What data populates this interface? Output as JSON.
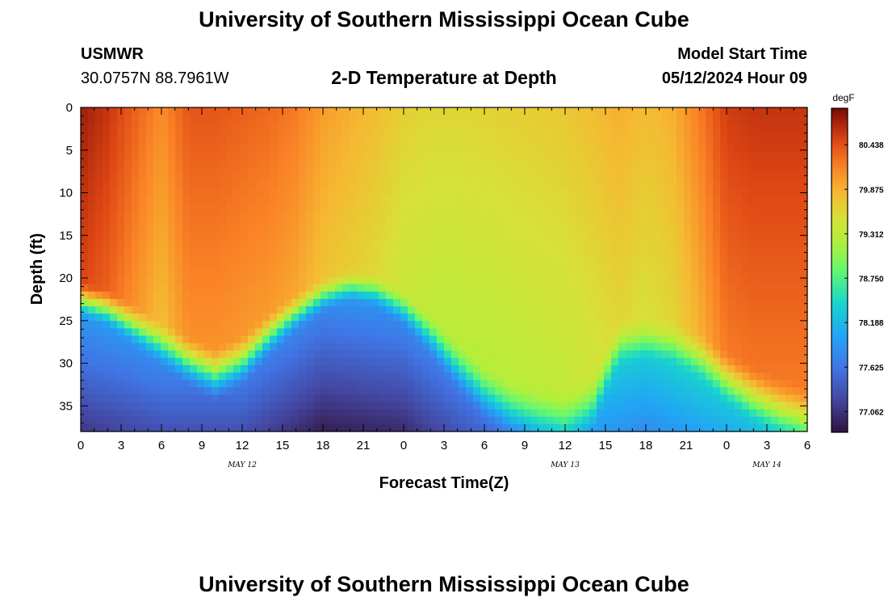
{
  "header": {
    "title": "University of Southern Mississippi Ocean Cube",
    "station": "USMWR",
    "coords": "30.0757N  88.7961W",
    "subtitle": "2-D Temperature at Depth",
    "model_label": "Model Start Time",
    "model_time": "05/12/2024 Hour 09"
  },
  "footer": {
    "title": "University of Southern Mississippi Ocean Cube"
  },
  "chart_data": {
    "type": "heatmap",
    "title": "2-D Temperature at Depth",
    "xlabel": "Forecast Time(Z)",
    "ylabel": "Depth (ft)",
    "x_unit": "hours from 05/12 00Z",
    "xlim": [
      0,
      54
    ],
    "ylim": [
      0,
      38
    ],
    "x_tick_values": [
      0,
      3,
      6,
      9,
      12,
      15,
      18,
      21,
      24,
      27,
      30,
      33,
      36,
      39,
      42,
      45,
      48,
      51,
      54
    ],
    "x_tick_labels": [
      "0",
      "3",
      "6",
      "9",
      "12",
      "15",
      "18",
      "21",
      "0",
      "3",
      "6",
      "9",
      "12",
      "15",
      "18",
      "21",
      "0",
      "3",
      "6"
    ],
    "y_ticks": [
      0,
      5,
      10,
      15,
      20,
      25,
      30,
      35
    ],
    "date_labels": [
      {
        "text": "MAY 12",
        "x": 12
      },
      {
        "text": "MAY 13",
        "x": 36
      },
      {
        "text": "MAY 14",
        "x": 51
      }
    ],
    "colorbar": {
      "units": "degF",
      "vmin": 76.8,
      "vmax": 80.9,
      "tick_values": [
        77.062,
        77.625,
        78.188,
        78.75,
        79.312,
        79.875,
        80.438
      ],
      "tick_labels": [
        "77.062",
        "77.625",
        "78.188",
        "78.750",
        "79.312",
        "79.875",
        "80.438"
      ]
    },
    "surface_temp_degF": {
      "time_h": [
        0,
        2,
        4,
        6,
        8,
        10,
        12,
        14,
        16,
        18,
        20,
        22,
        24,
        26,
        28,
        30,
        32,
        34,
        36,
        38,
        40,
        42,
        44,
        46,
        48,
        50,
        52,
        54
      ],
      "values": [
        80.75,
        80.6,
        80.35,
        80.1,
        80.4,
        80.4,
        80.35,
        80.3,
        80.2,
        80.0,
        79.9,
        79.8,
        79.65,
        79.6,
        79.6,
        79.62,
        79.65,
        79.68,
        79.72,
        79.8,
        79.9,
        79.8,
        79.9,
        80.2,
        80.55,
        80.6,
        80.6,
        80.6
      ]
    },
    "mixed_layer_depth_ft": {
      "time_h": [
        0,
        2,
        4,
        6,
        8,
        10,
        12,
        14,
        16,
        18,
        20,
        22,
        24,
        26,
        28,
        30,
        32,
        34,
        36,
        38,
        40,
        42,
        44,
        46,
        48,
        50,
        52,
        54
      ],
      "values": [
        22,
        23,
        25,
        27,
        29,
        30.5,
        29,
        26,
        23.5,
        21.5,
        20.5,
        21,
        23,
        26,
        29.5,
        32.5,
        34.5,
        35.5,
        36,
        34,
        27,
        26.5,
        27,
        28.5,
        31,
        33,
        34.5,
        35.5
      ]
    },
    "bottom_temp_degF": {
      "time_h": [
        0,
        6,
        12,
        18,
        24,
        30,
        36,
        42,
        48,
        54
      ],
      "values": [
        77.1,
        77.3,
        77.3,
        76.9,
        77.0,
        77.5,
        78.0,
        77.8,
        78.1,
        78.4
      ]
    }
  }
}
